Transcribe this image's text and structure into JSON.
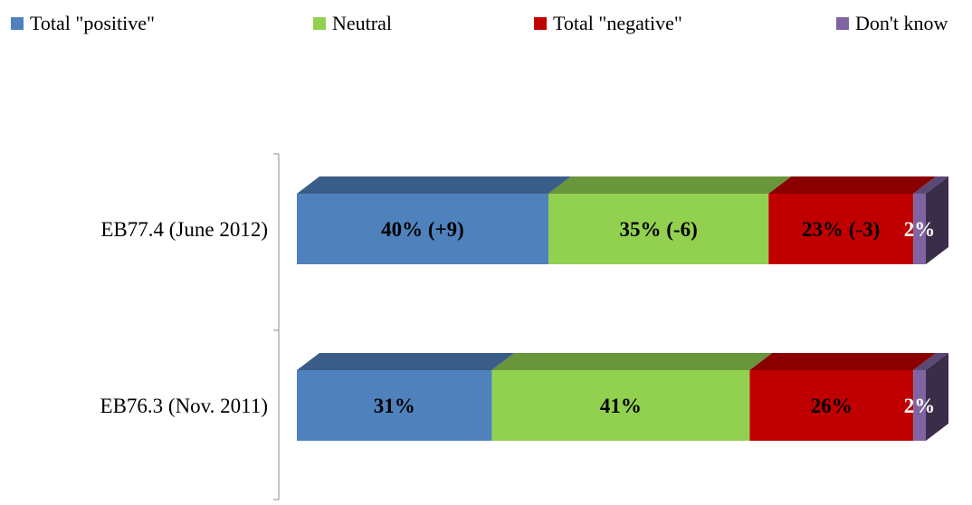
{
  "chart_data": {
    "type": "bar",
    "orientation": "horizontal",
    "stacked": true,
    "percent_stacked": true,
    "three_d": true,
    "legend_position": "top",
    "grid": false,
    "categories": [
      "EB77.4 (June 2012)",
      "EB76.3 (Nov. 2011)"
    ],
    "series": [
      {
        "name": "Total \"positive\"",
        "color": "#4f81bd",
        "values": [
          40,
          31
        ],
        "labels": [
          "40%  (+9)",
          "31%"
        ],
        "label_color": "#000000"
      },
      {
        "name": "Neutral",
        "color": "#92d050",
        "values": [
          35,
          41
        ],
        "labels": [
          "35% (-6)",
          "41%"
        ],
        "label_color": "#000000"
      },
      {
        "name": "Total \"negative\"",
        "color": "#c00000",
        "values": [
          23,
          26
        ],
        "labels": [
          "23% (-3)",
          "26%"
        ],
        "label_color": "#000000"
      },
      {
        "name": "Don't know",
        "color": "#8064a2",
        "values": [
          2,
          2
        ],
        "labels": [
          "2%",
          "2%"
        ],
        "label_color": "#ffffff"
      }
    ]
  }
}
